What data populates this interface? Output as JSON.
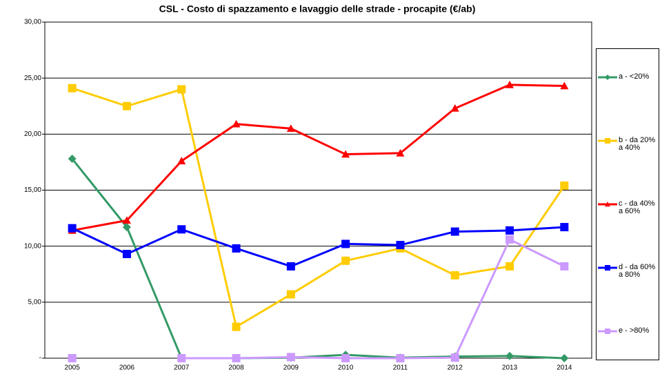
{
  "chart_data": {
    "type": "line",
    "title": "CSL - Costo di spazzamento e lavaggio delle strade - procapite (€/ab)",
    "categories": [
      "2005",
      "2006",
      "2007",
      "2008",
      "2009",
      "2010",
      "2011",
      "2012",
      "2013",
      "2014"
    ],
    "series": [
      {
        "name": "a - <20%",
        "color": "#339966",
        "marker": "diamond",
        "values": [
          17.8,
          11.7,
          0,
          0,
          0.05,
          0.3,
          0.05,
          0.15,
          0.2,
          0
        ]
      },
      {
        "name": "b - da 20% a 40%",
        "color": "#ffcc00",
        "marker": "square",
        "values": [
          24.1,
          22.5,
          24.0,
          2.8,
          5.7,
          8.7,
          9.8,
          7.4,
          8.2,
          15.4
        ]
      },
      {
        "name": "c - da 40% a 60%",
        "color": "#ff0000",
        "marker": "triangle",
        "values": [
          11.4,
          12.3,
          17.6,
          20.9,
          20.5,
          18.2,
          18.3,
          22.3,
          24.4,
          24.3
        ]
      },
      {
        "name": "d - da 60% a 80%",
        "color": "#0000ff",
        "marker": "square",
        "values": [
          11.6,
          9.3,
          11.5,
          9.8,
          8.2,
          10.2,
          10.1,
          11.3,
          11.4,
          11.7
        ]
      },
      {
        "name": "e - >80%",
        "color": "#cc99ff",
        "marker": "square",
        "values": [
          0,
          null,
          0,
          0,
          0.1,
          0,
          0,
          0.05,
          10.6,
          8.2
        ]
      }
    ],
    "ylim": [
      0,
      30
    ],
    "yticks": [
      {
        "value": 0,
        "label": "-"
      },
      {
        "value": 5,
        "label": "5,00"
      },
      {
        "value": 10,
        "label": "10,00"
      },
      {
        "value": 15,
        "label": "15,00"
      },
      {
        "value": 20,
        "label": "20,00"
      },
      {
        "value": 25,
        "label": "25,00"
      },
      {
        "value": 30,
        "label": "30,00"
      }
    ],
    "grid": true,
    "legend": "right"
  }
}
